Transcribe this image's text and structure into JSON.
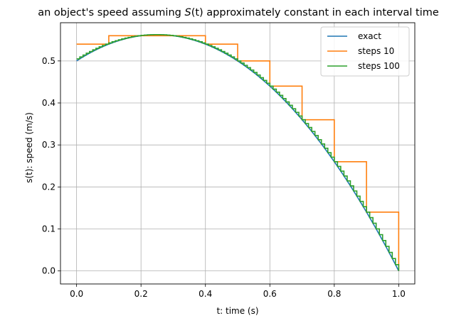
{
  "chart_data": {
    "type": "line",
    "title_prefix": "an object's speed assuming ",
    "title_math": "S",
    "title_math_arg": "(t)",
    "title_suffix": " approximately constant in each interval time",
    "xlabel": "t: time (s)",
    "ylabel": "s(t): speed (m/s)",
    "xlim": [
      -0.05,
      1.05
    ],
    "ylim": [
      -0.031,
      0.591
    ],
    "xticks": [
      0.0,
      0.2,
      0.4,
      0.6,
      0.8,
      1.0
    ],
    "xtick_labels": [
      "0.0",
      "0.2",
      "0.4",
      "0.6",
      "0.8",
      "1.0"
    ],
    "yticks": [
      0.0,
      0.1,
      0.2,
      0.3,
      0.4,
      0.5
    ],
    "ytick_labels": [
      "0.0",
      "0.1",
      "0.2",
      "0.3",
      "0.4",
      "0.5"
    ],
    "grid": true,
    "legend_position": "top-right",
    "function": {
      "formula": "0.5 + 0.5*t - t^2",
      "t_range": [
        0,
        1
      ]
    },
    "series": [
      {
        "name": "exact",
        "color": "#1f77b4",
        "kind": "curve"
      },
      {
        "name": "steps 10",
        "color": "#ff7f0e",
        "kind": "steps",
        "n": 10
      },
      {
        "name": "steps 100",
        "color": "#2ca02c",
        "kind": "steps",
        "n": 100
      }
    ]
  }
}
